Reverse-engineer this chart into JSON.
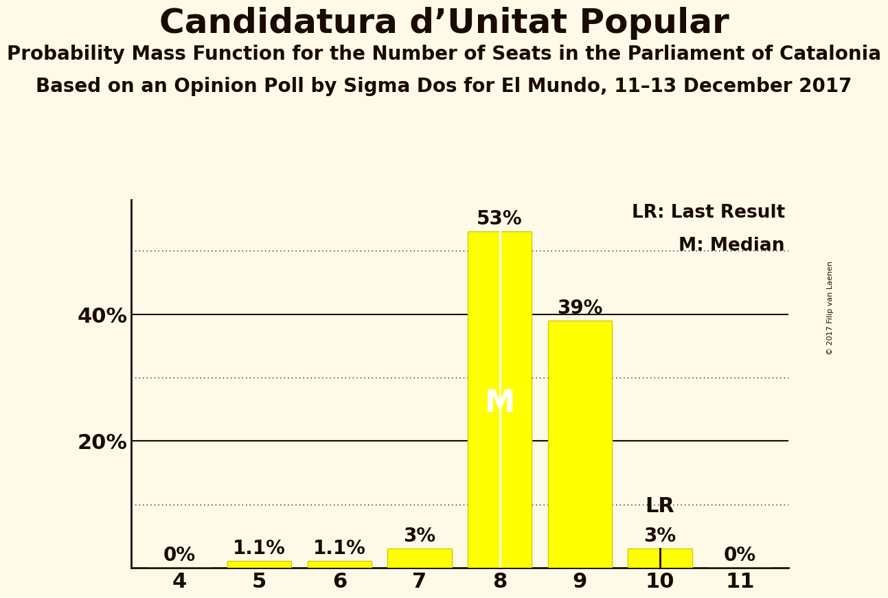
{
  "title": "Candidatura d’Unitat Popular",
  "subtitle1": "Probability Mass Function for the Number of Seats in the Parliament of Catalonia",
  "subtitle2": "Based on an Opinion Poll by Sigma Dos for El Mundo, 11–13 December 2017",
  "copyright": "© 2017 Filip van Laenen",
  "categories": [
    4,
    5,
    6,
    7,
    8,
    9,
    10,
    11
  ],
  "values": [
    0.0,
    1.1,
    1.1,
    3.0,
    53.0,
    39.0,
    3.0,
    0.0
  ],
  "bar_color": "#FFFF00",
  "bar_edge_color": "#CCCC00",
  "background_color": "#FFFAE8",
  "text_color": "#1a0a00",
  "solid_line_values": [
    20,
    40
  ],
  "dotted_line_values": [
    10,
    30,
    50
  ],
  "median_seat": 8,
  "last_result_seat": 10,
  "median_label": "M",
  "lr_label": "LR",
  "legend_lr": "LR: Last Result",
  "legend_m": "M: Median",
  "median_line_color": "#FFFFFF",
  "lr_line_color": "#1a0a00",
  "bar_label_fontsize": 20,
  "axis_label_fontsize": 22,
  "title_fontsize": 36,
  "subtitle_fontsize": 20,
  "bar_label_format": [
    "0%",
    "1.1%",
    "1.1%",
    "3%",
    "53%",
    "39%",
    "3%",
    "0%"
  ]
}
